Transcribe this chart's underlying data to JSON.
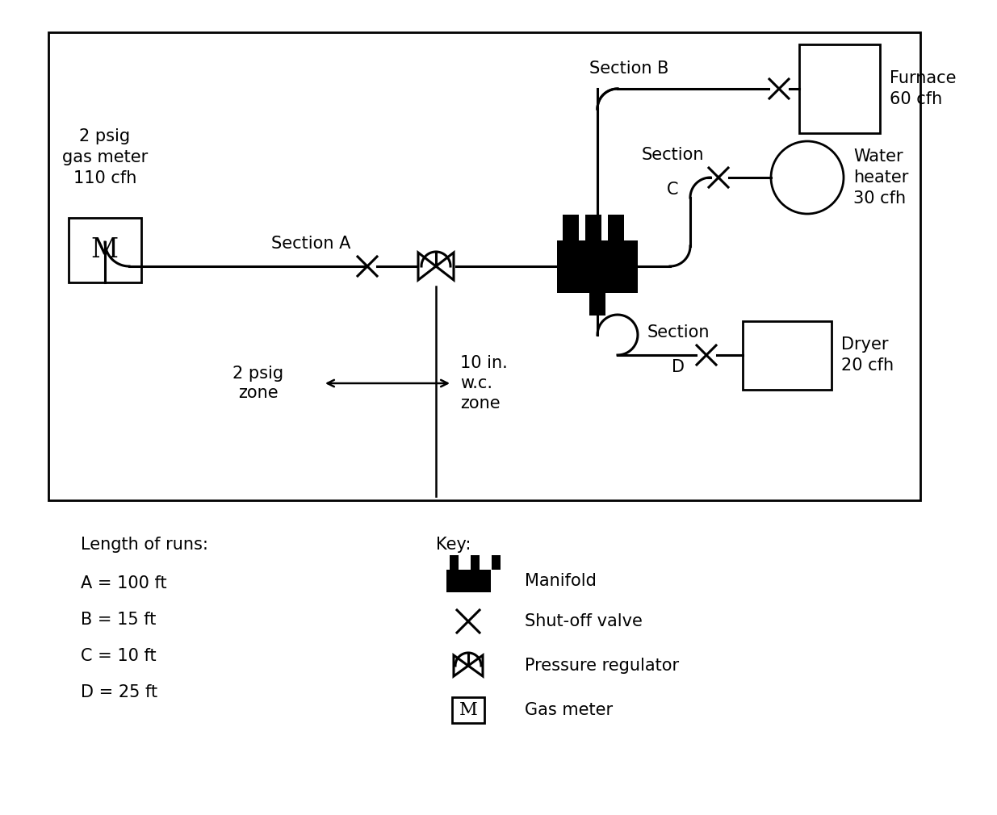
{
  "bg_color": "#ffffff",
  "line_color": "#000000",
  "runs_title": "Length of runs:",
  "runs": [
    "A = 100 ft",
    "B = 15 ft",
    "C = 10 ft",
    "D = 25 ft"
  ],
  "key_title": "Key:",
  "key_items": [
    "Manifold",
    "Shut-off valve",
    "Pressure regulator",
    "Gas meter"
  ],
  "font_size": 15
}
